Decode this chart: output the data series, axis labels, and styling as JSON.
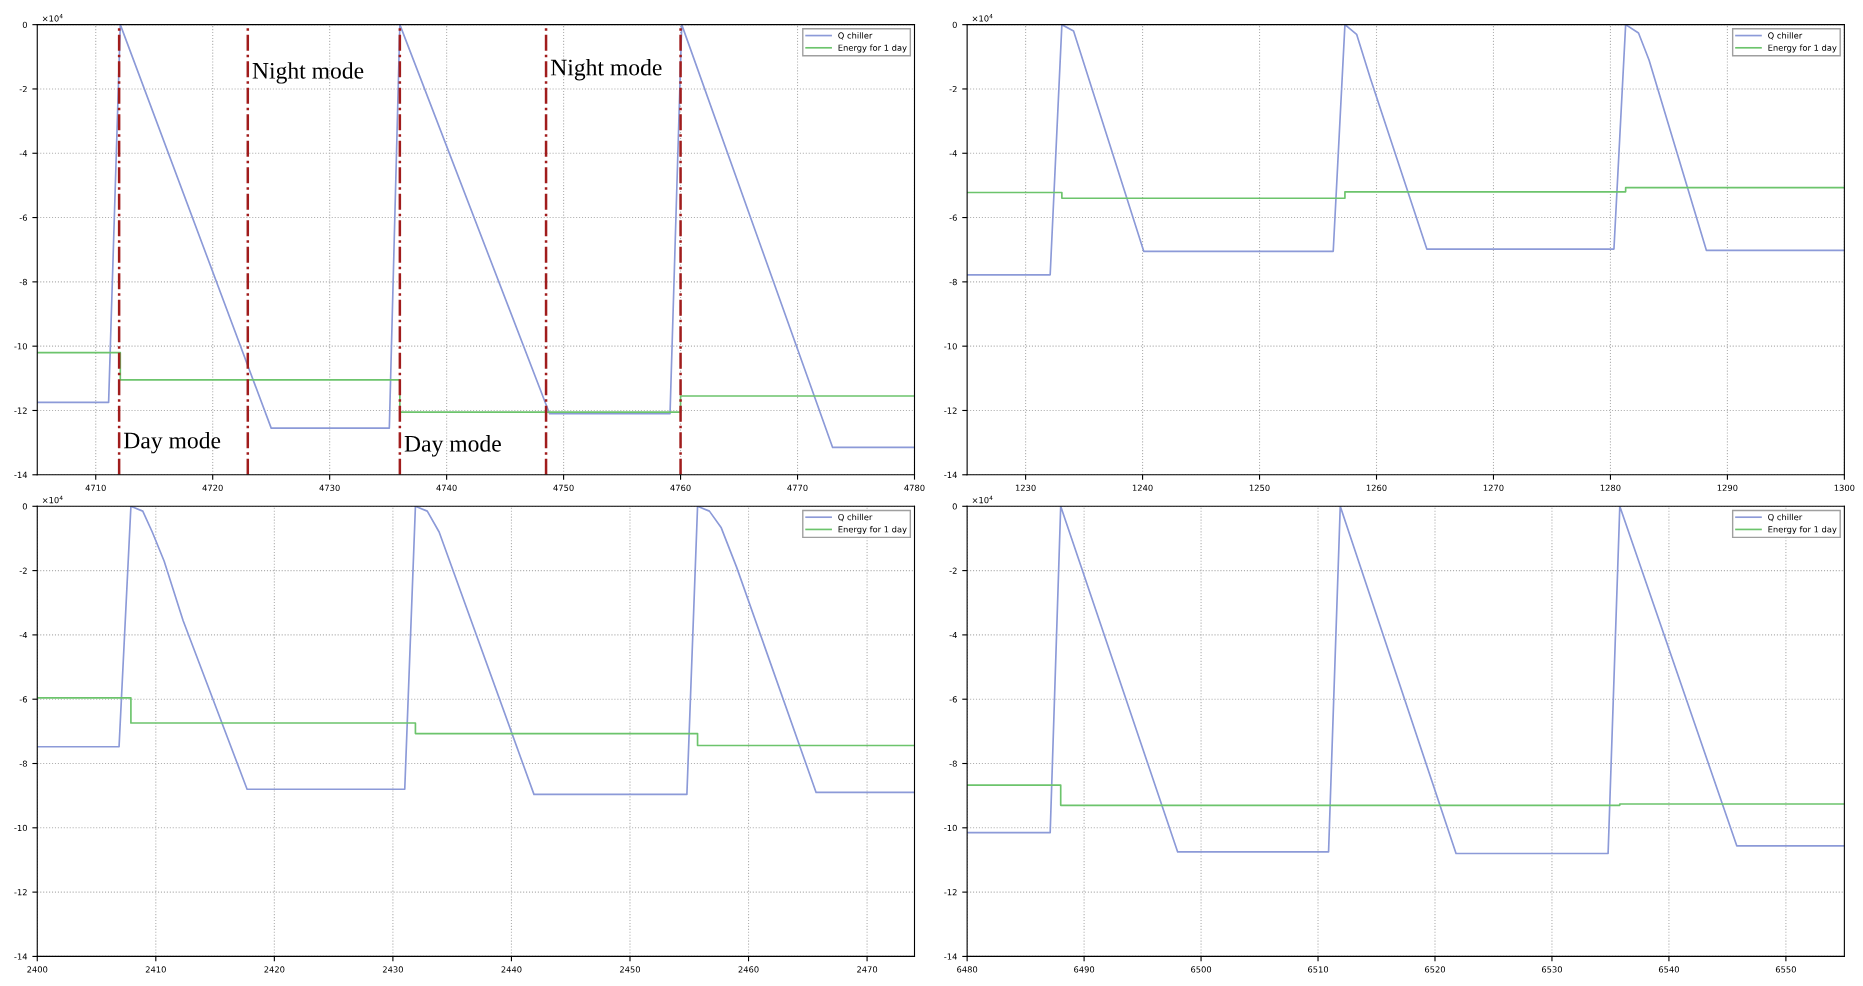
{
  "chart_data": [
    {
      "type": "line",
      "xlim": [
        4705,
        4780
      ],
      "xticks": [
        4710,
        4720,
        4730,
        4740,
        4750,
        4760,
        4770,
        4780
      ],
      "ylim": [
        -14,
        0
      ],
      "yticks": [
        0,
        -2,
        -4,
        -6,
        -8,
        -10,
        -12,
        -14
      ],
      "grid": true,
      "legend": "top right",
      "line_style": "solid",
      "marker": "none",
      "series": [
        {
          "name": "Q chiller",
          "color": "#8c9ad8",
          "x": [
            4705,
            4711.1,
            4712.1,
            4725,
            4735.1,
            4736,
            4748.8,
            4759.1,
            4760.1,
            4773,
            4780
          ],
          "values": [
            -11.75,
            -11.75,
            0,
            -12.55,
            -12.55,
            0,
            -12.1,
            -12.1,
            0,
            -13.15,
            -13.15
          ]
        },
        {
          "name": "Energy for 1 day",
          "type": "step",
          "color": "#6cc46c",
          "x": [
            4705,
            4712.1,
            4736,
            4760,
            4780
          ],
          "values": [
            -10.2,
            -11.05,
            -12.05,
            -11.55,
            -11.55
          ]
        }
      ],
      "ref_lines": [
        {
          "axis": "x",
          "value": 4712,
          "color": "#a01c1c",
          "line_style": "dashdot"
        },
        {
          "axis": "x",
          "value": 4723,
          "color": "#a01c1c",
          "line_style": "dashdot"
        },
        {
          "axis": "x",
          "value": 4736,
          "color": "#a01c1c",
          "line_style": "dashdot"
        },
        {
          "axis": "x",
          "value": 4748.5,
          "color": "#a01c1c",
          "line_style": "dashdot"
        },
        {
          "axis": "x",
          "value": 4760,
          "color": "#a01c1c",
          "line_style": "dashdot"
        }
      ],
      "annotations": [
        "×10$^{4}$",
        {
          "text": "Night mode",
          "x": 4723,
          "y": -1.5
        },
        {
          "text": "Night mode",
          "x": 4748.5,
          "y": -1.4
        },
        {
          "text": "Day mode",
          "x": 4712,
          "y": -13.0
        },
        {
          "text": "Day mode",
          "x": 4736,
          "y": -13.1
        }
      ]
    },
    {
      "type": "line",
      "xlim": [
        1225,
        1300
      ],
      "xticks": [
        1230,
        1240,
        1250,
        1260,
        1270,
        1280,
        1290,
        1300
      ],
      "ylim": [
        -14,
        0
      ],
      "yticks": [
        0,
        -2,
        -4,
        -6,
        -8,
        -10,
        -12,
        -14
      ],
      "grid": true,
      "legend": "top right",
      "line_style": "solid",
      "marker": "none",
      "series": [
        {
          "name": "Q chiller",
          "color": "#8c9ad8",
          "x": [
            1225,
            1232.1,
            1233.1,
            1234.1,
            1240.1,
            1256.3,
            1257.3,
            1258.3,
            1259.5,
            1264.3,
            1280.3,
            1281.3,
            1282.4,
            1283.3,
            1288.2,
            1300
          ],
          "values": [
            -7.78,
            -7.78,
            0,
            -0.2,
            -7.05,
            -7.05,
            0,
            -0.3,
            -1.7,
            -6.98,
            -6.98,
            0,
            -0.26,
            -1.1,
            -7.02,
            -7.02
          ]
        },
        {
          "name": "Energy for 1 day",
          "type": "step",
          "color": "#6cc46c",
          "x": [
            1225,
            1233.1,
            1257.3,
            1281.3,
            1300
          ],
          "values": [
            -5.22,
            -5.4,
            -5.2,
            -5.07,
            -5.07
          ]
        }
      ],
      "annotations": [
        "×10$^{4}$"
      ]
    },
    {
      "type": "line",
      "xlim": [
        2400,
        2474
      ],
      "xticks": [
        2400,
        2410,
        2420,
        2430,
        2440,
        2450,
        2460,
        2470
      ],
      "ylim": [
        -14,
        0
      ],
      "yticks": [
        0,
        -2,
        -4,
        -6,
        -8,
        -10,
        -12,
        -14
      ],
      "grid": true,
      "legend": "top right",
      "line_style": "solid",
      "marker": "none",
      "series": [
        {
          "name": "Q chiller",
          "color": "#8c9ad8",
          "x": [
            2400,
            2406.9,
            2407.9,
            2408.9,
            2409.7,
            2410.7,
            2412.3,
            2417.7,
            2431,
            2431.9,
            2432.9,
            2433.9,
            2441.9,
            2454.8,
            2455.7,
            2456.7,
            2457.7,
            2459,
            2465.7,
            2474
          ],
          "values": [
            -7.48,
            -7.48,
            0,
            -0.15,
            -0.8,
            -1.7,
            -3.55,
            -8.8,
            -8.8,
            0,
            -0.15,
            -0.8,
            -8.96,
            -8.96,
            0,
            -0.15,
            -0.67,
            -1.9,
            -8.9,
            -8.9
          ]
        },
        {
          "name": "Energy for 1 day",
          "type": "step",
          "color": "#6cc46c",
          "x": [
            2400,
            2407.9,
            2431.9,
            2455.7,
            2474
          ],
          "values": [
            -5.96,
            -6.74,
            -7.07,
            -7.44,
            -7.44
          ]
        }
      ],
      "annotations": [
        "×10$^{4}$"
      ]
    },
    {
      "type": "line",
      "xlim": [
        6480,
        6555
      ],
      "xticks": [
        6480,
        6490,
        6500,
        6510,
        6520,
        6530,
        6540,
        6550
      ],
      "ylim": [
        -14,
        0
      ],
      "yticks": [
        0,
        -2,
        -4,
        -6,
        -8,
        -10,
        -12,
        -14
      ],
      "grid": true,
      "legend": "top right",
      "line_style": "solid",
      "marker": "none",
      "series": [
        {
          "name": "Q chiller",
          "color": "#8c9ad8",
          "x": [
            6480,
            6487.1,
            6488,
            6498,
            6510.9,
            6511.9,
            6521.8,
            6534.8,
            6535.8,
            6545.8,
            6555
          ],
          "values": [
            -10.15,
            -10.15,
            0,
            -10.75,
            -10.75,
            0,
            -10.8,
            -10.8,
            0,
            -10.56,
            -10.56
          ]
        },
        {
          "name": "Energy for 1 day",
          "type": "step",
          "color": "#6cc46c",
          "x": [
            6480,
            6488,
            6535.8,
            6555
          ],
          "values": [
            -8.67,
            -9.3,
            -9.26,
            -9.26
          ]
        }
      ],
      "annotations": [
        "×10$^{4}$"
      ]
    }
  ]
}
